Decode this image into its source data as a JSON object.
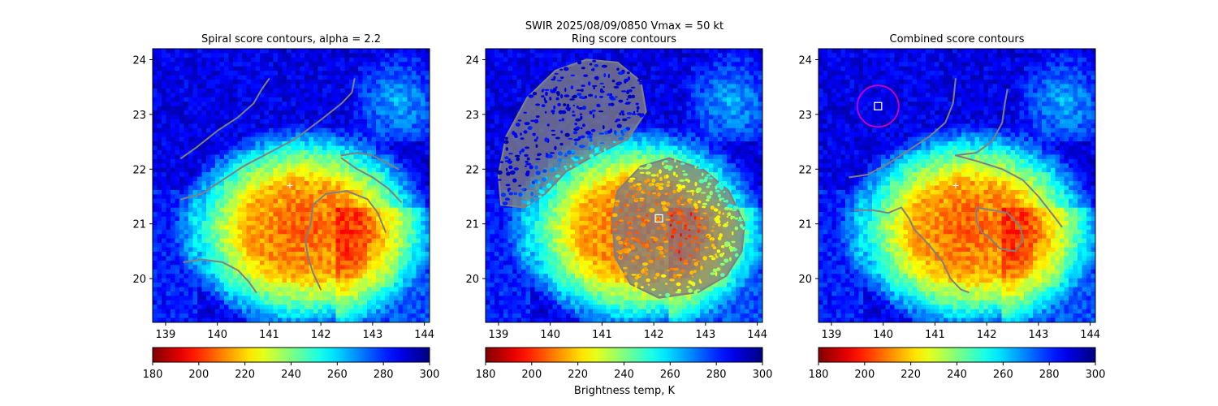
{
  "suptitle": "SWIR  2025/08/09/0850    Vmax = 50 kt",
  "colorbar_label": "Brightness temp, K",
  "colormap": "jet_r",
  "colors": {
    "contour": "#808080",
    "center_marker": "#ffffff",
    "circle": "#c000c0"
  },
  "chart_data": [
    {
      "type": "heatmap",
      "title": "Spiral score contours, alpha =  2.2",
      "xlim": [
        138.75,
        144.1
      ],
      "ylim": [
        19.2,
        24.2
      ],
      "xticks": [
        139,
        140,
        141,
        142,
        143,
        144
      ],
      "yticks": [
        20,
        21,
        22,
        23,
        24
      ],
      "colorbar": {
        "min": 180,
        "max": 300,
        "ticks": [
          180,
          200,
          220,
          240,
          260,
          280,
          300
        ]
      },
      "markers": [
        {
          "kind": "cross",
          "x": 141.4,
          "y": 21.7
        }
      ],
      "contours": [
        [
          [
            139.3,
            22.2
          ],
          [
            139.6,
            22.4
          ],
          [
            140.0,
            22.7
          ],
          [
            140.4,
            22.95
          ],
          [
            140.7,
            23.2
          ],
          [
            140.85,
            23.45
          ],
          [
            141.0,
            23.65
          ]
        ],
        [
          [
            139.3,
            21.45
          ],
          [
            139.7,
            21.55
          ],
          [
            140.1,
            21.8
          ],
          [
            140.5,
            22.05
          ],
          [
            141.0,
            22.3
          ],
          [
            141.5,
            22.55
          ],
          [
            142.0,
            22.9
          ],
          [
            142.4,
            23.2
          ],
          [
            142.6,
            23.4
          ],
          [
            142.65,
            23.65
          ]
        ],
        [
          [
            142.4,
            22.25
          ],
          [
            142.7,
            22.3
          ],
          [
            143.0,
            22.25
          ],
          [
            143.2,
            22.15
          ],
          [
            143.5,
            22.0
          ]
        ],
        [
          [
            142.4,
            22.2
          ],
          [
            142.7,
            22.0
          ],
          [
            143.0,
            21.85
          ],
          [
            143.3,
            21.65
          ],
          [
            143.55,
            21.4
          ]
        ],
        [
          [
            142.0,
            19.8
          ],
          [
            141.85,
            20.1
          ],
          [
            141.75,
            20.4
          ],
          [
            141.7,
            20.7
          ],
          [
            141.8,
            21.0
          ],
          [
            141.85,
            21.35
          ],
          [
            142.1,
            21.55
          ],
          [
            142.5,
            21.6
          ],
          [
            142.9,
            21.45
          ],
          [
            143.1,
            21.2
          ],
          [
            143.25,
            20.85
          ]
        ],
        [
          [
            139.35,
            20.3
          ],
          [
            139.7,
            20.35
          ],
          [
            140.1,
            20.3
          ],
          [
            140.4,
            20.15
          ],
          [
            140.6,
            19.95
          ],
          [
            140.75,
            19.75
          ]
        ]
      ]
    },
    {
      "type": "heatmap",
      "title": "Ring score contours",
      "xlim": [
        138.75,
        144.1
      ],
      "ylim": [
        19.2,
        24.2
      ],
      "xticks": [
        139,
        140,
        141,
        142,
        143,
        144
      ],
      "yticks": [
        20,
        21,
        22,
        23,
        24
      ],
      "colorbar": {
        "min": 180,
        "max": 300,
        "ticks": [
          180,
          200,
          220,
          240,
          260,
          280,
          300
        ]
      },
      "markers": [
        {
          "kind": "square",
          "x": 142.1,
          "y": 21.1
        }
      ],
      "filled_regions": [
        [
          [
            139.05,
            21.35
          ],
          [
            139.0,
            21.9
          ],
          [
            139.15,
            22.6
          ],
          [
            139.55,
            23.3
          ],
          [
            140.1,
            23.8
          ],
          [
            140.7,
            24.0
          ],
          [
            141.3,
            23.95
          ],
          [
            141.75,
            23.6
          ],
          [
            141.85,
            23.05
          ],
          [
            141.5,
            22.55
          ],
          [
            140.85,
            22.25
          ],
          [
            140.3,
            21.95
          ],
          [
            139.9,
            21.55
          ],
          [
            139.5,
            21.3
          ]
        ],
        [
          [
            141.2,
            21.1
          ],
          [
            141.3,
            21.6
          ],
          [
            141.75,
            22.05
          ],
          [
            142.3,
            22.2
          ],
          [
            142.95,
            22.0
          ],
          [
            143.45,
            21.6
          ],
          [
            143.75,
            21.0
          ],
          [
            143.7,
            20.5
          ],
          [
            143.4,
            20.05
          ],
          [
            142.85,
            19.75
          ],
          [
            142.1,
            19.65
          ],
          [
            141.55,
            19.9
          ],
          [
            141.25,
            20.4
          ]
        ]
      ]
    },
    {
      "type": "heatmap",
      "title": "Combined score contours",
      "xlim": [
        138.75,
        144.1
      ],
      "ylim": [
        19.2,
        24.2
      ],
      "xticks": [
        139,
        140,
        141,
        142,
        143,
        144
      ],
      "yticks": [
        20,
        21,
        22,
        23,
        24
      ],
      "colorbar": {
        "min": 180,
        "max": 300,
        "ticks": [
          180,
          200,
          220,
          240,
          260,
          280,
          300
        ]
      },
      "markers": [
        {
          "kind": "cross",
          "x": 141.4,
          "y": 21.7
        },
        {
          "kind": "square",
          "x": 139.9,
          "y": 23.15
        },
        {
          "kind": "circle",
          "x": 139.9,
          "y": 23.15,
          "radius_deg": 0.4
        }
      ],
      "contours": [
        [
          [
            139.35,
            21.85
          ],
          [
            139.7,
            21.9
          ],
          [
            140.1,
            22.1
          ],
          [
            140.5,
            22.35
          ],
          [
            140.9,
            22.6
          ],
          [
            141.2,
            22.85
          ],
          [
            141.35,
            23.2
          ],
          [
            141.4,
            23.65
          ]
        ],
        [
          [
            141.4,
            22.25
          ],
          [
            141.8,
            22.3
          ],
          [
            142.1,
            22.5
          ],
          [
            142.3,
            22.85
          ],
          [
            142.35,
            23.2
          ],
          [
            142.4,
            23.45
          ]
        ],
        [
          [
            141.4,
            22.25
          ],
          [
            141.8,
            22.15
          ],
          [
            142.3,
            22.0
          ],
          [
            142.7,
            21.8
          ],
          [
            143.0,
            21.5
          ],
          [
            143.25,
            21.2
          ],
          [
            143.45,
            20.95
          ]
        ],
        [
          [
            139.45,
            21.25
          ],
          [
            139.8,
            21.25
          ],
          [
            140.1,
            21.2
          ],
          [
            140.35,
            21.3
          ],
          [
            140.5,
            21.1
          ],
          [
            140.6,
            20.9
          ],
          [
            140.9,
            20.6
          ],
          [
            141.15,
            20.3
          ],
          [
            141.3,
            20.0
          ],
          [
            141.5,
            19.8
          ],
          [
            141.65,
            19.75
          ]
        ],
        [
          [
            141.8,
            21.3
          ],
          [
            142.1,
            21.25
          ],
          [
            142.4,
            21.2
          ],
          [
            142.65,
            20.95
          ],
          [
            142.7,
            20.7
          ],
          [
            142.55,
            20.5
          ],
          [
            142.25,
            20.55
          ],
          [
            142.05,
            20.75
          ],
          [
            141.9,
            20.85
          ],
          [
            141.8,
            21.05
          ],
          [
            141.8,
            21.3
          ]
        ]
      ]
    }
  ]
}
